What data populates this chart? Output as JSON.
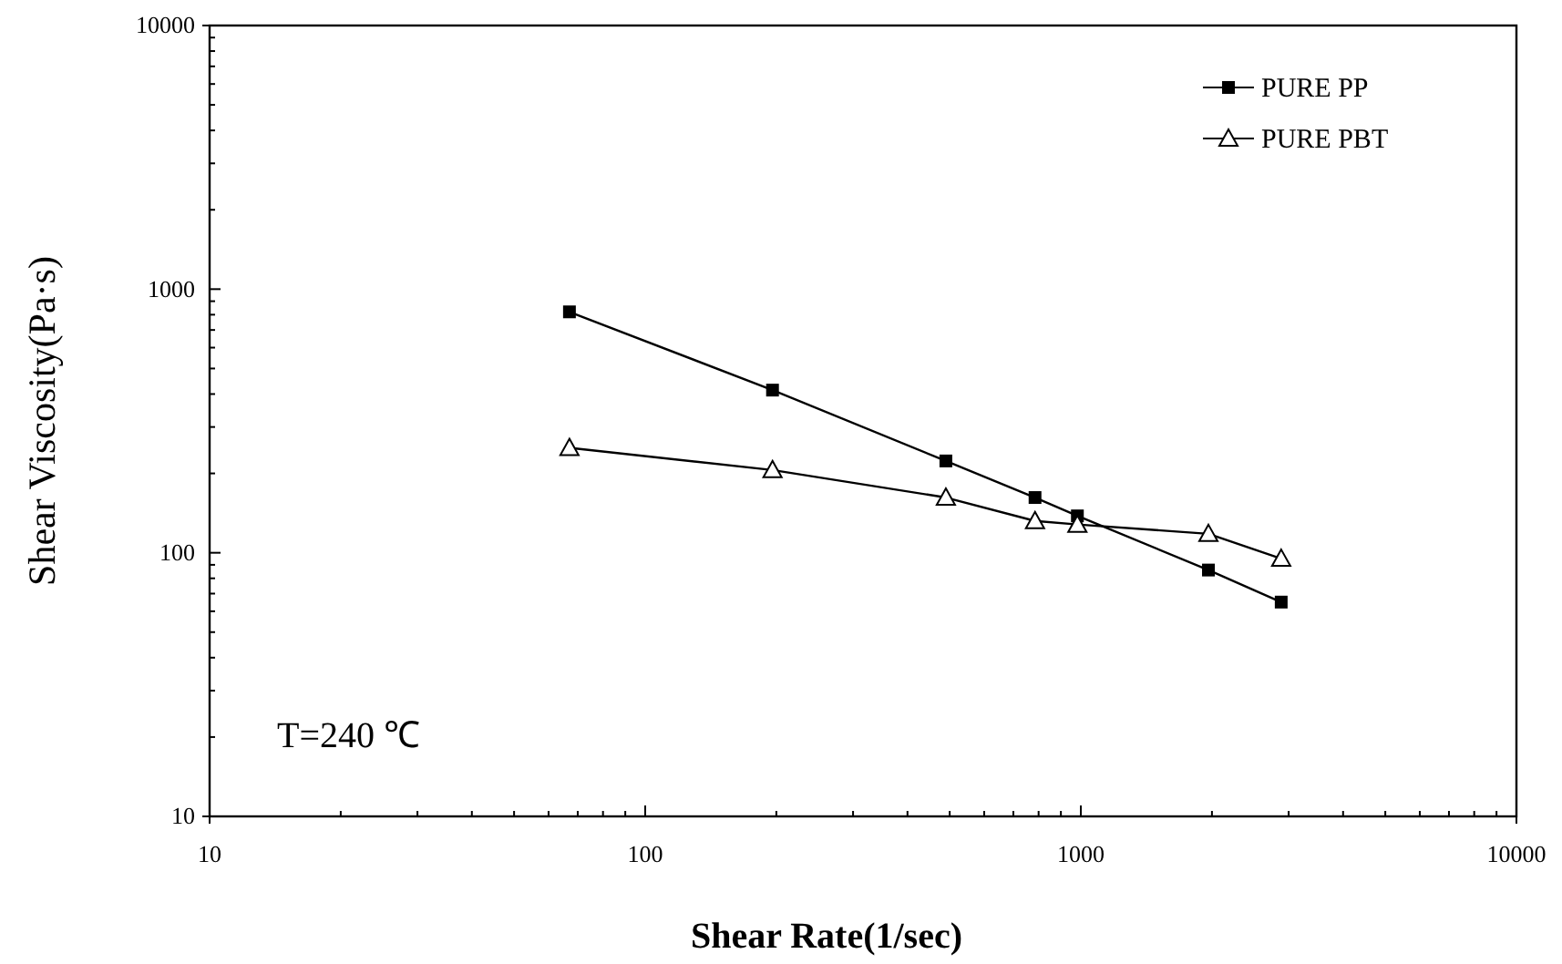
{
  "chart_data": {
    "type": "line",
    "xlabel": "Shear Rate(1/sec)",
    "ylabel": "Shear Viscosity(Pa·s)",
    "log": "xy",
    "xlim": [
      10,
      10000
    ],
    "ylim": [
      10,
      10000
    ],
    "xticks": [
      10,
      {
        "value": 20,
        "label": null
      },
      {
        "value": 30,
        "label": null
      },
      {
        "value": 40,
        "label": null
      },
      {
        "value": 50,
        "label": null
      },
      {
        "value": 60,
        "label": null
      },
      {
        "value": 70,
        "label": null
      },
      {
        "value": 80,
        "label": null
      },
      {
        "value": 90,
        "label": null
      },
      100,
      {
        "value": 200,
        "label": null
      },
      {
        "value": 300,
        "label": null
      },
      {
        "value": 400,
        "label": null
      },
      {
        "value": 500,
        "label": null
      },
      {
        "value": 600,
        "label": null
      },
      {
        "value": 700,
        "label": null
      },
      {
        "value": 800,
        "label": null
      },
      {
        "value": 900,
        "label": null
      },
      1000,
      {
        "value": 2000,
        "label": null
      },
      {
        "value": 3000,
        "label": null
      },
      {
        "value": 4000,
        "label": null
      },
      {
        "value": 5000,
        "label": null
      },
      {
        "value": 6000,
        "label": null
      },
      {
        "value": 7000,
        "label": null
      },
      {
        "value": 8000,
        "label": null
      },
      {
        "value": 9000,
        "label": null
      },
      10000
    ],
    "yticks": [
      10,
      {
        "value": 20,
        "label": null
      },
      {
        "value": 30,
        "label": null
      },
      {
        "value": 40,
        "label": null
      },
      {
        "value": 50,
        "label": null
      },
      {
        "value": 60,
        "label": null
      },
      {
        "value": 70,
        "label": null
      },
      {
        "value": 80,
        "label": null
      },
      {
        "value": 90,
        "label": null
      },
      100,
      {
        "value": 200,
        "label": null
      },
      {
        "value": 300,
        "label": null
      },
      {
        "value": 400,
        "label": null
      },
      {
        "value": 500,
        "label": null
      },
      {
        "value": 600,
        "label": null
      },
      {
        "value": 700,
        "label": null
      },
      {
        "value": 800,
        "label": null
      },
      {
        "value": 900,
        "label": null
      },
      1000,
      {
        "value": 2000,
        "label": null
      },
      {
        "value": 3000,
        "label": null
      },
      {
        "value": 4000,
        "label": null
      },
      {
        "value": 5000,
        "label": null
      },
      {
        "value": 6000,
        "label": null
      },
      {
        "value": 7000,
        "label": null
      },
      {
        "value": 8000,
        "label": null
      },
      {
        "value": 9000,
        "label": null
      },
      10000
    ],
    "x": [
      67,
      196,
      490,
      785,
      982,
      1963,
      2884
    ],
    "series": [
      {
        "name": "PURE PP",
        "color": "#000000",
        "marker": "square",
        "values": [
          820,
          414,
          223,
          162,
          138,
          86,
          65
        ]
      },
      {
        "name": "PURE PBT",
        "color": "#000000",
        "marker": "triangle",
        "values": [
          250,
          206,
          162,
          132,
          128,
          118,
          95
        ]
      }
    ],
    "legend": "top right",
    "grid": false,
    "line_style": "solid",
    "annotations": [
      "T=240 ℃"
    ]
  }
}
